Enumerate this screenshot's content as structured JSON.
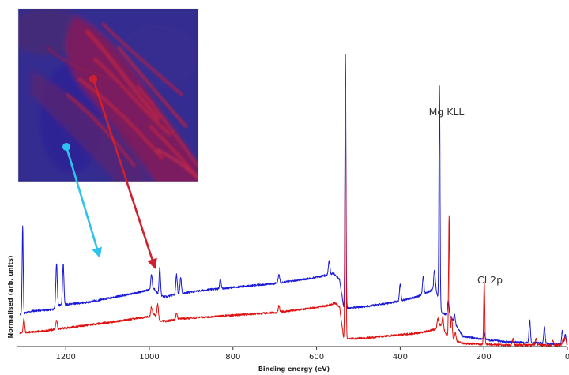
{
  "chart_data": {
    "type": "line",
    "xlabel": "Binding energy (eV)",
    "ylabel": "Normalised (arb. units)",
    "xlim": [
      1310,
      0
    ],
    "x_ticks": [
      "1200",
      "1000",
      "800",
      "600",
      "400",
      "200",
      "0"
    ],
    "x_tick_values": [
      1200,
      1000,
      800,
      600,
      400,
      200,
      0
    ],
    "grid": false,
    "annotations": [
      {
        "text": "Mg KLL",
        "x": 305
      },
      {
        "text": "Cl 2p",
        "x": 199
      }
    ],
    "series": [
      {
        "color": "#1a1ad6",
        "baseline": [
          [
            1310,
            41
          ],
          [
            1280,
            45
          ],
          [
            1230,
            47
          ],
          [
            1220,
            52
          ],
          [
            1150,
            56
          ],
          [
            1100,
            61
          ],
          [
            1050,
            66
          ],
          [
            1000,
            72
          ],
          [
            990,
            74
          ],
          [
            975,
            64
          ],
          [
            960,
            63
          ],
          [
            930,
            67
          ],
          [
            860,
            72
          ],
          [
            800,
            75
          ],
          [
            700,
            80
          ],
          [
            620,
            86
          ],
          [
            580,
            90
          ],
          [
            560,
            93
          ],
          [
            545,
            85
          ],
          [
            535,
            49
          ],
          [
            520,
            49
          ],
          [
            480,
            51
          ],
          [
            440,
            54
          ],
          [
            400,
            58
          ],
          [
            360,
            63
          ],
          [
            330,
            70
          ],
          [
            315,
            73
          ],
          [
            300,
            43
          ],
          [
            280,
            38
          ],
          [
            250,
            13
          ],
          [
            200,
            9
          ],
          [
            150,
            6
          ],
          [
            100,
            5
          ],
          [
            50,
            4
          ],
          [
            0,
            2
          ]
        ],
        "peaks": [
          [
            1303,
            110
          ],
          [
            1222,
            55
          ],
          [
            1206,
            52
          ],
          [
            995,
            18
          ],
          [
            975,
            36
          ],
          [
            935,
            25
          ],
          [
            925,
            20
          ],
          [
            830,
            12
          ],
          [
            690,
            11
          ],
          [
            570,
            17
          ],
          [
            531,
            320
          ],
          [
            400,
            22
          ],
          [
            345,
            22
          ],
          [
            318,
            25
          ],
          [
            306,
            275
          ],
          [
            285,
            19
          ],
          [
            270,
            11
          ],
          [
            199,
            8
          ],
          [
            90,
            28
          ],
          [
            55,
            20
          ],
          [
            12,
            18
          ],
          [
            5,
            14
          ]
        ]
      },
      {
        "color": "#e01010",
        "baseline": [
          [
            1310,
            17
          ],
          [
            1250,
            20
          ],
          [
            1150,
            27
          ],
          [
            1050,
            34
          ],
          [
            1000,
            38
          ],
          [
            990,
            42
          ],
          [
            975,
            33
          ],
          [
            960,
            32
          ],
          [
            930,
            35
          ],
          [
            850,
            38
          ],
          [
            700,
            43
          ],
          [
            620,
            48
          ],
          [
            575,
            52
          ],
          [
            555,
            55
          ],
          [
            545,
            50
          ],
          [
            535,
            10
          ],
          [
            520,
            10
          ],
          [
            480,
            11
          ],
          [
            440,
            13
          ],
          [
            400,
            15
          ],
          [
            360,
            17
          ],
          [
            330,
            20
          ],
          [
            315,
            22
          ],
          [
            305,
            28
          ],
          [
            295,
            20
          ],
          [
            285,
            12
          ],
          [
            270,
            8
          ],
          [
            250,
            4
          ],
          [
            200,
            3
          ],
          [
            150,
            2
          ],
          [
            100,
            2
          ],
          [
            50,
            2
          ],
          [
            0,
            2
          ]
        ],
        "peaks": [
          [
            1300,
            18
          ],
          [
            1222,
            12
          ],
          [
            995,
            10
          ],
          [
            980,
            18
          ],
          [
            935,
            8
          ],
          [
            690,
            8
          ],
          [
            531,
            320
          ],
          [
            310,
            11
          ],
          [
            298,
            15
          ],
          [
            283,
            154
          ],
          [
            277,
            28
          ],
          [
            268,
            10
          ],
          [
            199,
            80
          ],
          [
            130,
            8
          ],
          [
            75,
            8
          ],
          [
            35,
            6
          ],
          [
            10,
            8
          ],
          [
            5,
            10
          ]
        ]
      }
    ]
  },
  "inset_image": {
    "type": "map",
    "colors": {
      "background": "#2d2a8c",
      "feature": "#8e1a50"
    }
  },
  "arrows": [
    {
      "color": "#2ec3ec"
    },
    {
      "color": "#d0202e"
    }
  ]
}
